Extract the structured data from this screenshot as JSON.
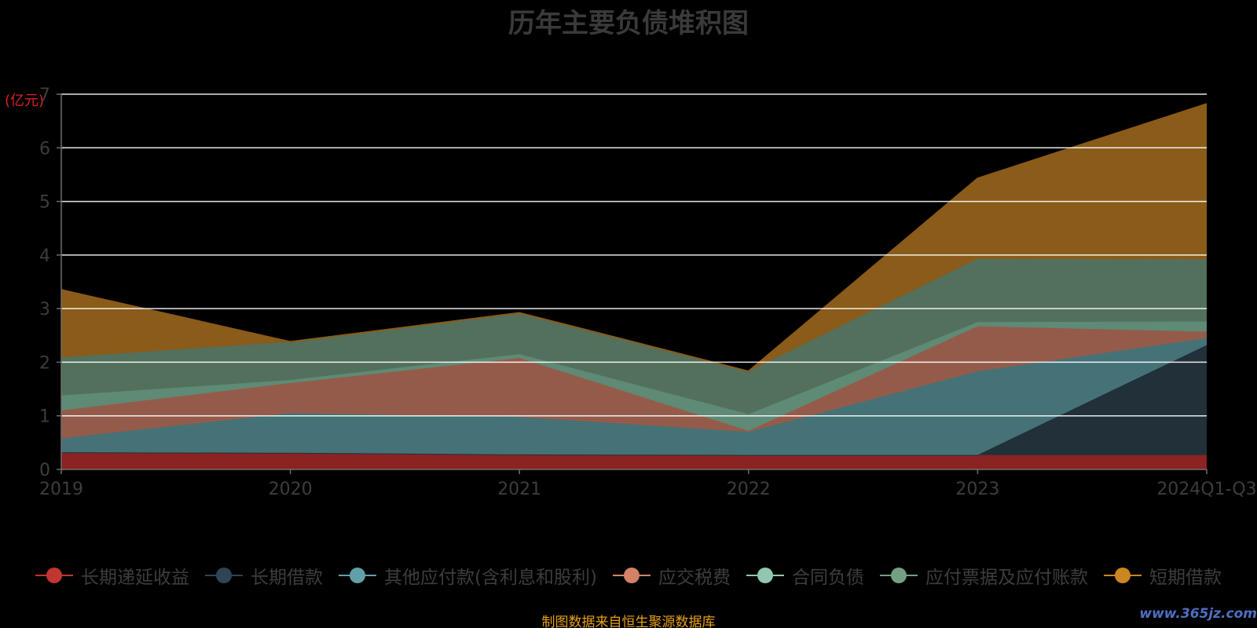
{
  "chart_data": {
    "type": "area",
    "title": "历年主要负债堆积图",
    "ylabel": "(亿元)",
    "ylim": [
      0,
      7
    ],
    "yticks": [
      0,
      1,
      2,
      3,
      4,
      5,
      6,
      7
    ],
    "categories": [
      "2019",
      "2020",
      "2021",
      "2022",
      "2023",
      "2024Q1-Q3"
    ],
    "stacked": true,
    "grid": true,
    "legend_position": "bottom",
    "series": [
      {
        "name": "长期递延收益",
        "values": [
          0.32,
          0.31,
          0.28,
          0.27,
          0.27,
          0.27
        ],
        "color": "#c23531",
        "fill": "#8b2323"
      },
      {
        "name": "长期借款",
        "values": [
          0,
          0,
          0,
          0,
          0,
          2.05
        ],
        "color": "#2f4554",
        "fill": "#213039"
      },
      {
        "name": "其他应付款(含利息和股利)",
        "values": [
          0.26,
          0.74,
          0.7,
          0.43,
          1.56,
          0.13
        ],
        "color": "#61a0a8",
        "fill": "#457276"
      },
      {
        "name": "应交税费",
        "values": [
          0.52,
          0.56,
          1.1,
          0.02,
          0.84,
          0.12
        ],
        "color": "#d48265",
        "fill": "#955b4a"
      },
      {
        "name": "合同负债",
        "values": [
          0.28,
          0.06,
          0.07,
          0.31,
          0.08,
          0.19
        ],
        "color": "#91c7ae",
        "fill": "#5e8a76"
      },
      {
        "name": "应付票据及应付账款",
        "values": [
          0.71,
          0.71,
          0.77,
          0.8,
          1.18,
          1.16
        ],
        "color": "#749f83",
        "fill": "#52705c"
      },
      {
        "name": "短期借款",
        "values": [
          1.26,
          0,
          0,
          0,
          1.5,
          2.9
        ],
        "color": "#ca8622",
        "fill": "#8a5b19"
      }
    ]
  },
  "source": "制图数据来自恒生聚源数据库",
  "watermark": "www.365jz.com",
  "colors": {
    "background": "#000000",
    "grid": "#ffffff",
    "axis": "#6e6e6e",
    "tick_label": "#3d3d3d",
    "title": "#3a3a3a",
    "unit_label": "#d42424",
    "source": "#e6a017"
  }
}
